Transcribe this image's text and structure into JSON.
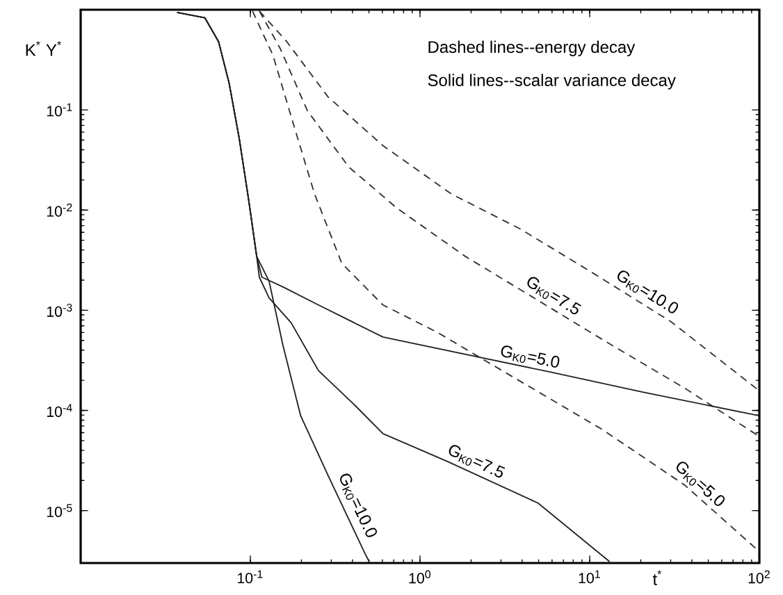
{
  "chart_data": {
    "type": "line",
    "xlabel": "t$^{*}$",
    "ylabel": "K$^{*}$ Y$^{*}$",
    "log": "xy",
    "grid": false,
    "xlim": [
      0.01,
      100
    ],
    "ylim": [
      3e-06,
      1
    ],
    "xticks": [
      {
        "value": 0.1,
        "label": "10$^{-1}$"
      },
      {
        "value": 1,
        "label": "10$^{0}$"
      },
      {
        "value": 10,
        "label": "10$^{1}$"
      },
      {
        "value": 100,
        "label": "10$^{2}$"
      }
    ],
    "yticks": [
      {
        "value": 1e-05,
        "label": "10$^{-5}$"
      },
      {
        "value": 0.0001,
        "label": "10$^{-4}$"
      },
      {
        "value": 0.001,
        "label": "10$^{-3}$"
      },
      {
        "value": 0.01,
        "label": "10$^{-2}$"
      },
      {
        "value": 0.1,
        "label": "10$^{-1}$"
      }
    ],
    "series": [
      {
        "color": "#333333",
        "line_style": "dashed",
        "x": [
          0.113,
          0.164,
          0.287,
          0.605,
          1.53,
          3.89,
          9.87,
          30.1,
          100
        ],
        "values": [
          0.97,
          0.48,
          0.135,
          0.044,
          0.0145,
          0.0065,
          0.0025,
          0.00077,
          0.000157
        ]
      },
      {
        "color": "#333333",
        "line_style": "dashed",
        "x": [
          0.113,
          0.15,
          0.217,
          0.38,
          0.729,
          1.85,
          4.69,
          11.9,
          36.3,
          100
        ],
        "values": [
          0.97,
          0.41,
          0.098,
          0.027,
          0.0105,
          0.00345,
          0.00133,
          0.00051,
          0.000167,
          5.5e-05
        ]
      },
      {
        "color": "#333333",
        "line_style": "dashed",
        "x": [
          0.103,
          0.136,
          0.18,
          0.239,
          0.346,
          0.605,
          1.27,
          3.89,
          11.9,
          36.3,
          100
        ],
        "values": [
          0.97,
          0.35,
          0.071,
          0.0145,
          0.00294,
          0.00113,
          0.0006,
          0.000196,
          6.44e-05,
          1.8e-05,
          3.9e-06
        ]
      },
      {
        "color": "#222222",
        "line_style": "solid",
        "x": [
          0.037,
          0.054,
          0.065,
          0.075,
          0.086,
          0.098,
          0.109,
          0.117,
          0.156,
          0.252,
          0.605,
          5.65,
          20.8,
          100
        ],
        "values": [
          0.94,
          0.83,
          0.48,
          0.185,
          0.052,
          0.0123,
          0.00345,
          0.00214,
          0.00171,
          0.00113,
          0.00054,
          0.000245,
          0.000152,
          8.85e-05
        ]
      },
      {
        "color": "#222222",
        "line_style": "solid",
        "x": [
          0.037,
          0.054,
          0.065,
          0.075,
          0.086,
          0.098,
          0.109,
          0.113,
          0.129,
          0.174,
          0.252,
          0.417,
          0.605,
          1.45,
          4.96,
          13.1
        ],
        "values": [
          0.94,
          0.83,
          0.48,
          0.185,
          0.052,
          0.0123,
          0.00345,
          0.00214,
          0.00133,
          0.00075,
          0.00025,
          0.000111,
          5.86e-05,
          3.1e-05,
          1.19e-05,
          3.1e-06
        ]
      },
      {
        "color": "#222222",
        "line_style": "solid",
        "x": [
          0.037,
          0.054,
          0.065,
          0.075,
          0.086,
          0.098,
          0.109,
          0.129,
          0.156,
          0.198,
          0.287,
          0.475,
          0.502
        ],
        "values": [
          0.94,
          0.83,
          0.48,
          0.185,
          0.052,
          0.0123,
          0.00345,
          0.00195,
          0.00044,
          8.85e-05,
          2.25e-05,
          3.7e-06,
          3.1e-06
        ]
      }
    ],
    "annotations": [
      "Dashed lines--energy decay",
      "Solid lines--scalar variance decay",
      {
        "text": "G$_{K0}$=10.0",
        "x": 20,
        "y": 0.0012
      },
      {
        "text": "G$_{K0}$=7.5",
        "x": 5.6,
        "y": 0.0011
      },
      {
        "text": "G$_{K0}$=5.0",
        "x": 4.3,
        "y": 0.00026
      },
      {
        "text": "G$_{K0}$=5.0",
        "x": 40,
        "y": 1.5e-05
      },
      {
        "text": "G$_{K0}$=7.5",
        "x": 2.0,
        "y": 2.4e-05
      },
      {
        "text": "G$_{K0}$=10.0",
        "x": 0.37,
        "y": 1e-05
      }
    ]
  }
}
